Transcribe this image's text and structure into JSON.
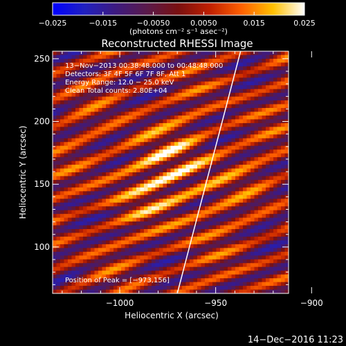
{
  "colorbar": {
    "ticks": [
      {
        "value": -0.025,
        "label": "−0.025"
      },
      {
        "value": -0.015,
        "label": "−0.015"
      },
      {
        "value": -0.005,
        "label": "−0.0050"
      },
      {
        "value": 0.005,
        "label": "0.0050"
      },
      {
        "value": 0.015,
        "label": "0.015"
      },
      {
        "value": 0.025,
        "label": "0.025"
      }
    ],
    "range": [
      -0.025,
      0.025
    ],
    "colormap": [
      "#0000ff",
      "#2020c0",
      "#3d1a80",
      "#5a1a4a",
      "#7a1010",
      "#c02000",
      "#ff6000",
      "#ffc000",
      "#ffffff"
    ]
  },
  "header": {
    "units_label": "(photons cm⁻² s⁻¹ asec⁻²)",
    "title": "Reconstructed RHESSI Image"
  },
  "annotations": {
    "time": "13−Nov−2013 00:38:48.000 to 00:48:48.000",
    "detectors": "Detectors: 3F 4F 5F 6F 7F 8F, Att 1",
    "energy": "Energy Range: 12.0 − 25.0 keV",
    "clean": "Clean    Total counts: 2.80E+04",
    "peak": "Position of Peak = [−973,156]"
  },
  "footer": {
    "timestamp": "14−Dec−2016 11:23"
  },
  "chart_data": {
    "type": "heatmap",
    "title": "Reconstructed RHESSI Image",
    "xlabel": "Heliocentric X (arcsec)",
    "ylabel": "Heliocentric Y (arcsec)",
    "xlim": [
      -1035,
      -912
    ],
    "ylim": [
      63,
      256
    ],
    "x_ticks": [
      {
        "value": -1000,
        "label": "−1000"
      },
      {
        "value": -950,
        "label": "−950"
      },
      {
        "value": -900,
        "label": "−900"
      }
    ],
    "y_ticks": [
      {
        "value": 100,
        "label": "100"
      },
      {
        "value": 150,
        "label": "150"
      },
      {
        "value": 200,
        "label": "200"
      },
      {
        "value": 250,
        "label": "250"
      }
    ],
    "peak": {
      "x": -973,
      "y": 156
    },
    "limb_line": [
      [
        -970,
        63
      ],
      [
        -937,
        256
      ]
    ],
    "colorbar_range": [
      -0.025,
      0.025
    ]
  }
}
